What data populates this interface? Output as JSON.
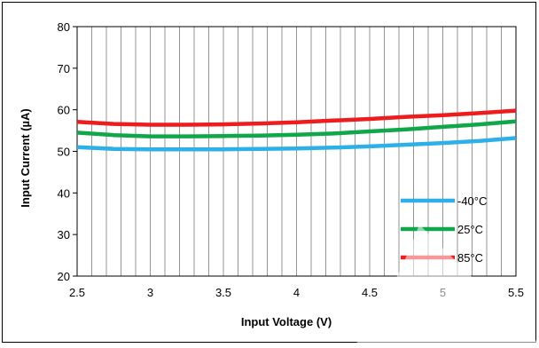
{
  "chart_data": {
    "type": "line",
    "title": "",
    "xlabel": "Input Voltage (V)",
    "ylabel": "Input Current (µA)",
    "xlim": [
      2.5,
      5.5
    ],
    "ylim": [
      20,
      80
    ],
    "x_ticks": [
      "2.5",
      "3",
      "3.5",
      "4",
      "4.5",
      "5",
      "5.5"
    ],
    "y_ticks": [
      "20",
      "30",
      "40",
      "50",
      "60",
      "70",
      "80"
    ],
    "grid": "vertical",
    "legend_position": "bottom-right",
    "x": [
      2.5,
      2.75,
      3.0,
      3.25,
      3.5,
      3.75,
      4.0,
      4.25,
      4.5,
      4.75,
      5.0,
      5.25,
      5.5
    ],
    "series": [
      {
        "name": "-40°C",
        "color": "#2DB0E8",
        "values": [
          51.0,
          50.6,
          50.5,
          50.5,
          50.5,
          50.6,
          50.7,
          50.9,
          51.2,
          51.6,
          52.0,
          52.5,
          53.2
        ]
      },
      {
        "name": "25°C",
        "color": "#10A74A",
        "values": [
          54.5,
          53.9,
          53.6,
          53.6,
          53.7,
          53.8,
          54.0,
          54.3,
          54.8,
          55.3,
          55.9,
          56.5,
          57.2
        ]
      },
      {
        "name": "85°C",
        "color": "#EE1C1C",
        "values": [
          57.1,
          56.6,
          56.4,
          56.4,
          56.5,
          56.7,
          57.0,
          57.4,
          57.8,
          58.3,
          58.7,
          59.2,
          59.8
        ]
      }
    ]
  }
}
